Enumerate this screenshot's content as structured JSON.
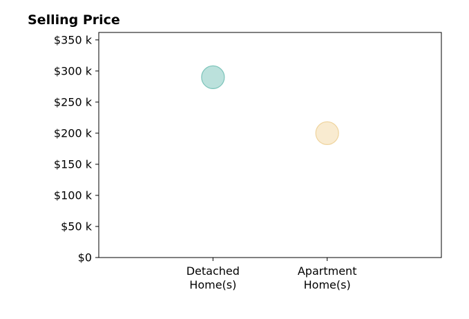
{
  "chart_data": {
    "type": "scatter",
    "title": "Selling Price",
    "xlabel": "",
    "ylabel": "",
    "categories": [
      [
        "Detached",
        "Home(s)"
      ],
      [
        "Apartment",
        "Home(s)"
      ]
    ],
    "x": [
      1,
      2
    ],
    "xlim": [
      0,
      3
    ],
    "values": [
      290000,
      200000
    ],
    "ylim": [
      0,
      362000
    ],
    "yticks": [
      0,
      50000,
      100000,
      150000,
      200000,
      250000,
      300000,
      350000
    ],
    "ytick_labels": [
      "$0",
      "$50 k",
      "$100 k",
      "$150 k",
      "$200 k",
      "$250 k",
      "$300 k",
      "$350 k"
    ],
    "point_colors": [
      "#8ecdc4",
      "#f5deb0"
    ],
    "point_edge_colors": [
      "#7cc4ba",
      "#efd49e"
    ],
    "grid": false,
    "legend": "none"
  }
}
